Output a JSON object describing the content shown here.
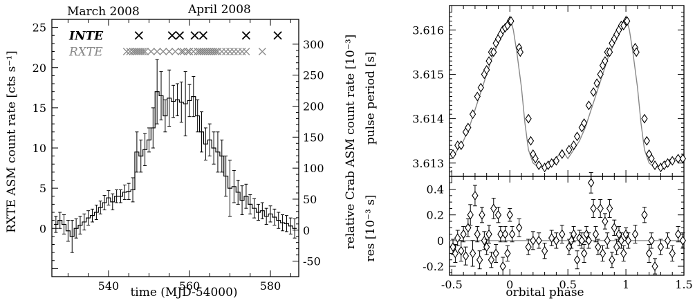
{
  "chart_data": [
    {
      "type": "line",
      "header_left": "March 2008",
      "header_right": "April 2008",
      "xlabel": "time (MJD-54000)",
      "ylabel_left": "RXTE ASM count rate [cts s⁻¹]",
      "ylabel_right": "relative Crab ASM count rate [10⁻³]",
      "xlim": [
        526,
        587
      ],
      "ylim": [
        -6,
        26
      ],
      "ylim_right": [
        -75,
        340
      ],
      "x_ticks": [
        540,
        560,
        580
      ],
      "y_ticks": [
        0,
        5,
        10,
        15,
        20,
        25
      ],
      "y_ticks_right": [
        -50,
        0,
        50,
        100,
        150,
        200,
        250,
        300
      ],
      "series": [
        {
          "name": "INTE",
          "style": "x-markers",
          "x": [
            547.5,
            555.7,
            557.6,
            561.3,
            563.4,
            574.0,
            581.8
          ],
          "y_level": 24.0
        },
        {
          "name": "RXTE",
          "style": "x-markers-gray",
          "x": [
            544.5,
            545.3,
            546.0,
            546.5,
            547.0,
            547.5,
            548.0,
            548.5,
            549.0,
            550.5,
            552.0,
            553.5,
            555.0,
            556.5,
            558.0,
            558.5,
            559.5,
            560.0,
            561.0,
            562.0,
            562.5,
            563.0,
            563.5,
            564.0,
            564.5,
            565.0,
            565.5,
            566.0,
            566.5,
            567.0,
            568.0,
            569.0,
            570.0,
            571.0,
            572.0,
            573.0,
            574.0,
            578.0
          ],
          "y_level": 22.0
        },
        {
          "name": "",
          "style": "step-with-errors",
          "x": [
            527,
            528,
            529,
            530,
            531,
            532,
            533,
            534,
            535,
            536,
            537,
            538,
            539,
            540,
            541,
            542,
            543,
            544,
            545,
            546,
            547,
            548,
            549,
            550,
            551,
            552,
            553,
            554,
            555,
            556,
            557,
            558,
            559,
            560,
            561,
            562,
            563,
            564,
            565,
            566,
            567,
            568,
            569,
            570,
            571,
            572,
            573,
            574,
            575,
            576,
            577,
            578,
            579,
            580,
            581,
            582,
            583,
            584,
            585,
            586
          ],
          "y": [
            0.5,
            1.0,
            0.5,
            -0.3,
            -1.0,
            0.0,
            0.4,
            0.8,
            1.3,
            1.6,
            2.0,
            2.6,
            3.2,
            3.8,
            3.3,
            4.0,
            4.0,
            4.5,
            4.6,
            4.8,
            9.5,
            9.0,
            9.8,
            11.0,
            12.5,
            17.0,
            16.5,
            14.0,
            16.2,
            15.8,
            16.0,
            15.7,
            15.5,
            15.9,
            16.4,
            14.0,
            12.0,
            10.5,
            11.0,
            10.0,
            9.5,
            9.0,
            6.5,
            5.0,
            5.2,
            4.5,
            3.5,
            4.0,
            3.0,
            2.5,
            2.0,
            2.2,
            1.5,
            1.8,
            1.4,
            1.0,
            0.7,
            0.6,
            0.3,
            0.0
          ],
          "err": [
            1.0,
            1.0,
            1.2,
            1.3,
            2.0,
            1.2,
            1.1,
            1.0,
            0.9,
            0.8,
            0.9,
            0.8,
            0.9,
            0.9,
            1.0,
            0.8,
            0.8,
            0.9,
            1.0,
            1.5,
            2.5,
            2.0,
            2.0,
            1.5,
            2.5,
            4.0,
            3.0,
            2.0,
            3.5,
            2.0,
            2.0,
            2.5,
            4.0,
            2.0,
            2.5,
            2.0,
            2.5,
            2.0,
            2.0,
            2.0,
            2.5,
            2.0,
            2.5,
            3.5,
            2.0,
            1.5,
            1.8,
            1.5,
            1.2,
            1.2,
            1.0,
            1.0,
            1.0,
            1.0,
            1.0,
            1.0,
            1.0,
            1.0,
            1.0,
            1.2
          ]
        }
      ]
    },
    {
      "type": "scatter",
      "ylabel": "pulse period [s]",
      "xlim": [
        -0.52,
        1.5
      ],
      "ylim": [
        3.6127,
        3.61655
      ],
      "x_ticks": [],
      "y_ticks": [
        3.613,
        3.614,
        3.615,
        3.616
      ],
      "series": [
        {
          "name": "",
          "style": "model-line",
          "x": [
            -0.5,
            -0.45,
            -0.4,
            -0.35,
            -0.3,
            -0.25,
            -0.2,
            -0.15,
            -0.1,
            -0.05,
            0.0,
            0.03,
            0.06,
            0.1,
            0.13,
            0.16,
            0.2,
            0.25,
            0.3,
            0.35,
            0.4,
            0.45,
            0.5,
            0.55,
            0.6,
            0.65,
            0.7,
            0.75,
            0.8,
            0.85,
            0.9,
            0.95,
            1.0,
            1.03,
            1.06,
            1.1,
            1.13,
            1.16,
            1.2,
            1.25,
            1.3,
            1.35,
            1.4,
            1.45,
            1.5
          ],
          "y": [
            3.6131,
            3.6133,
            3.6135,
            3.6138,
            3.6142,
            3.6146,
            3.615,
            3.6154,
            3.6157,
            3.616,
            3.6163,
            3.616,
            3.6155,
            3.6147,
            3.6139,
            3.6133,
            3.613,
            3.6129,
            3.61295,
            3.61305,
            3.6131,
            3.6133,
            3.6131,
            3.6133,
            3.6135,
            3.6138,
            3.6142,
            3.6146,
            3.615,
            3.6154,
            3.6157,
            3.616,
            3.6163,
            3.616,
            3.6155,
            3.6147,
            3.6139,
            3.6133,
            3.613,
            3.6129,
            3.61295,
            3.61305,
            3.6131,
            3.6131,
            3.6131
          ]
        },
        {
          "name": "",
          "style": "diamond-markers",
          "x": [
            -0.49,
            -0.45,
            -0.42,
            -0.38,
            -0.36,
            -0.32,
            -0.28,
            -0.25,
            -0.22,
            -0.2,
            -0.18,
            -0.16,
            -0.14,
            -0.12,
            -0.1,
            -0.08,
            -0.06,
            -0.04,
            -0.02,
            0.0,
            0.01,
            0.08,
            0.09,
            0.16,
            0.18,
            0.2,
            0.22,
            0.25,
            0.3,
            0.33,
            0.36,
            0.4,
            0.45,
            0.51,
            0.55,
            0.58,
            0.62,
            0.64,
            0.68,
            0.72,
            0.75,
            0.78,
            0.8,
            0.82,
            0.84,
            0.86,
            0.88,
            0.9,
            0.92,
            0.94,
            0.96,
            0.98,
            1.0,
            1.01,
            1.08,
            1.09,
            1.16,
            1.18,
            1.2,
            1.22,
            1.25,
            1.3,
            1.33,
            1.36,
            1.4,
            1.45,
            1.49
          ],
          "y": [
            3.6132,
            3.6134,
            3.6134,
            3.6137,
            3.6138,
            3.6141,
            3.6145,
            3.6147,
            3.615,
            3.6151,
            3.6153,
            3.6155,
            3.6155,
            3.6157,
            3.6158,
            3.6159,
            3.616,
            3.61605,
            3.6161,
            3.6162,
            3.6162,
            3.6156,
            3.6155,
            3.614,
            3.6135,
            3.6132,
            3.6131,
            3.61295,
            3.6129,
            3.61295,
            3.613,
            3.61305,
            3.6132,
            3.6133,
            3.6134,
            3.6136,
            3.6138,
            3.6139,
            3.6143,
            3.6146,
            3.6148,
            3.615,
            3.6152,
            3.6153,
            3.6155,
            3.6155,
            3.6157,
            3.6158,
            3.6159,
            3.616,
            3.6161,
            3.6161,
            3.6162,
            3.6162,
            3.6156,
            3.6155,
            3.614,
            3.6135,
            3.6132,
            3.6131,
            3.61295,
            3.6129,
            3.61295,
            3.613,
            3.61305,
            3.6131,
            3.6131
          ]
        }
      ]
    },
    {
      "type": "scatter",
      "xlabel": "orbital phase",
      "ylabel": "res [10⁻³ s]",
      "xlim": [
        -0.52,
        1.5
      ],
      "ylim": [
        -0.27,
        0.5
      ],
      "x_ticks": [
        -0.5,
        0,
        0.5,
        1,
        1.5
      ],
      "x_tick_labels": [
        "-0.5",
        "0",
        "0.5",
        "1",
        "1.5"
      ],
      "y_ticks": [
        -0.2,
        0,
        0.2,
        0.4
      ],
      "y_tick_labels": [
        "-0.2",
        "0",
        "0.2",
        "0.4"
      ],
      "reference_line": 0,
      "series": [
        {
          "name": "",
          "style": "diamond-errorbars",
          "x": [
            -0.49,
            -0.47,
            -0.45,
            -0.42,
            -0.4,
            -0.38,
            -0.36,
            -0.34,
            -0.32,
            -0.3,
            -0.28,
            -0.26,
            -0.24,
            -0.22,
            -0.2,
            -0.18,
            -0.16,
            -0.14,
            -0.12,
            -0.1,
            -0.08,
            -0.06,
            -0.04,
            -0.02,
            0.0,
            0.02,
            0.08,
            0.16,
            0.2,
            0.25,
            0.3,
            0.36,
            0.4,
            0.45,
            0.51,
            0.53,
            0.55,
            0.58,
            0.6,
            0.62,
            0.64,
            0.66,
            0.68,
            0.7,
            0.72,
            0.74,
            0.76,
            0.78,
            0.8,
            0.82,
            0.84,
            0.86,
            0.88,
            0.9,
            0.92,
            0.94,
            0.96,
            0.98,
            1.0,
            1.02,
            1.08,
            1.16,
            1.2,
            1.22,
            1.25,
            1.3,
            1.36,
            1.4,
            1.45,
            1.49
          ],
          "y": [
            -0.05,
            -0.1,
            0.02,
            -0.08,
            0.05,
            -0.12,
            0.1,
            0.2,
            -0.1,
            0.35,
            0.05,
            -0.15,
            0.2,
            0.0,
            -0.05,
            0.05,
            -0.15,
            0.25,
            -0.1,
            0.2,
            0.05,
            -0.2,
            0.05,
            -0.1,
            0.2,
            0.05,
            0.1,
            -0.05,
            0.0,
            0.0,
            -0.08,
            0.02,
            0.0,
            0.05,
            -0.05,
            0.0,
            0.05,
            -0.15,
            0.02,
            0.0,
            -0.1,
            0.05,
            0.0,
            0.45,
            0.25,
            0.05,
            -0.05,
            0.25,
            -0.1,
            0.15,
            0.0,
            0.25,
            -0.15,
            0.1,
            -0.05,
            0.05,
            0.0,
            -0.1,
            0.05,
            0.0,
            0.05,
            0.2,
            -0.1,
            0.0,
            -0.2,
            -0.05,
            0.0,
            -0.1,
            0.05,
            0.0
          ],
          "err": [
            0.06,
            0.07,
            0.06,
            0.08,
            0.06,
            0.07,
            0.07,
            0.08,
            0.1,
            0.08,
            0.06,
            0.07,
            0.06,
            0.07,
            0.06,
            0.07,
            0.06,
            0.08,
            0.07,
            0.06,
            0.06,
            0.07,
            0.06,
            0.06,
            0.05,
            0.06,
            0.07,
            0.06,
            0.07,
            0.06,
            0.06,
            0.06,
            0.06,
            0.07,
            0.06,
            0.06,
            0.06,
            0.07,
            0.06,
            0.06,
            0.07,
            0.06,
            0.06,
            0.08,
            0.07,
            0.06,
            0.06,
            0.07,
            0.06,
            0.06,
            0.06,
            0.07,
            0.06,
            0.06,
            0.06,
            0.06,
            0.06,
            0.06,
            0.05,
            0.06,
            0.07,
            0.06,
            0.07,
            0.06,
            0.06,
            0.06,
            0.06,
            0.06,
            0.06,
            0.06
          ]
        }
      ]
    }
  ]
}
